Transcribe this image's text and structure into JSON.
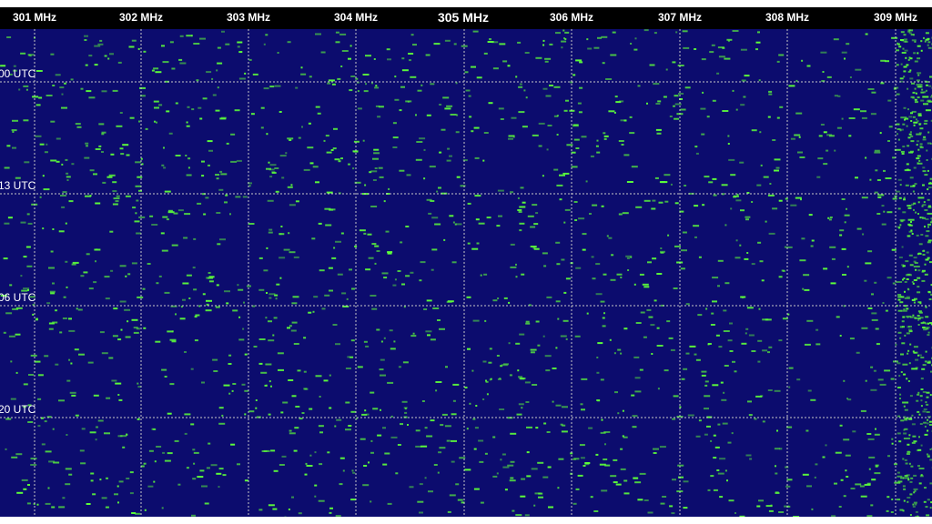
{
  "frequency_axis": {
    "labels": [
      "301 MHz",
      "302 MHz",
      "303 MHz",
      "304 MHz",
      "305 MHz",
      "306 MHz",
      "307 MHz",
      "308 MHz",
      "309 MHz"
    ],
    "emphasized_label": "305 MHz"
  },
  "time_axis": {
    "labels": [
      "00 UTC",
      "13 UTC",
      "06 UTC",
      "20 UTC"
    ]
  },
  "colors": {
    "background": "#0c0c6e",
    "signal": "#5dff3a",
    "grid": "#c8c8c8",
    "header": "#000000",
    "label_text": "#ffffff"
  }
}
